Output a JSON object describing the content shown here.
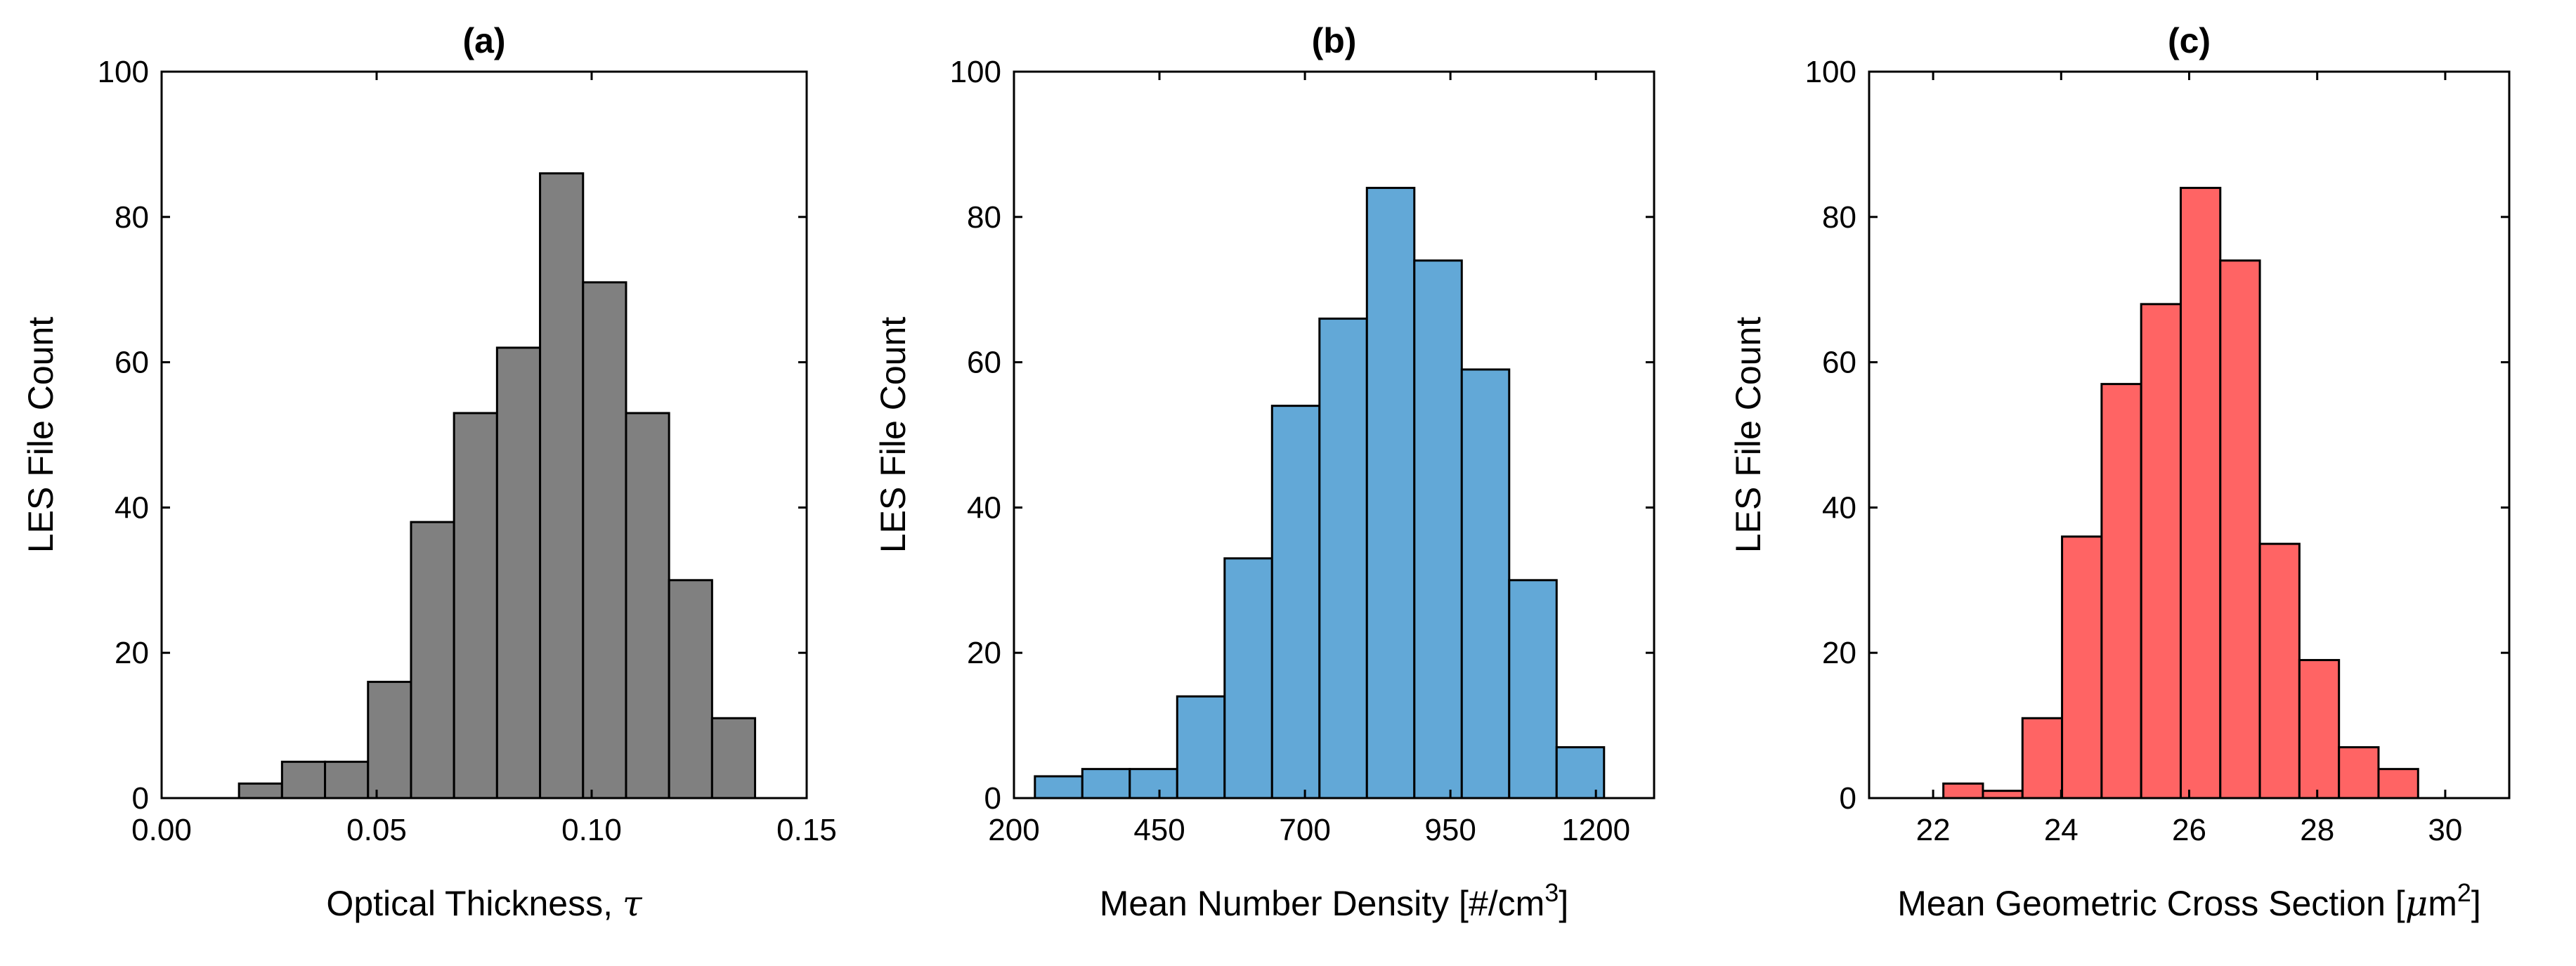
{
  "chart_data": [
    {
      "type": "bar",
      "title": "(a)",
      "xlabel": "Optical Thickness, ",
      "xlabel_symbol": "τ",
      "ylabel": "LES File Count",
      "xlim": [
        0,
        0.15
      ],
      "ylim": [
        0,
        100
      ],
      "xticks": [
        0,
        0.05,
        0.1,
        0.15
      ],
      "xtick_labels": [
        "0.00",
        "0.05",
        "0.10",
        "0.15"
      ],
      "yticks": [
        0,
        20,
        40,
        60,
        80,
        100
      ],
      "ytick_labels": [
        "0",
        "20",
        "40",
        "60",
        "80",
        "100"
      ],
      "bar_color": "#808080",
      "bin_width": 0.01,
      "bin_start": 0.018,
      "values": [
        2,
        5,
        5,
        16,
        38,
        53,
        62,
        86,
        71,
        53,
        30,
        11
      ]
    },
    {
      "type": "bar",
      "title": "(b)",
      "xlabel": "Mean Number Density [#/cm",
      "xlabel_sup": "3",
      "xlabel_end": "]",
      "ylabel": "LES File Count",
      "xlim": [
        200,
        1300
      ],
      "ylim": [
        0,
        100
      ],
      "xticks": [
        200,
        450,
        700,
        950,
        1200
      ],
      "xtick_labels": [
        "200",
        "450",
        "700",
        "950",
        "1200"
      ],
      "yticks": [
        0,
        20,
        40,
        60,
        80,
        100
      ],
      "ytick_labels": [
        "0",
        "20",
        "40",
        "60",
        "80",
        "100"
      ],
      "bar_color": "#62A8D7",
      "bin_width": 81.5,
      "bin_start": 236,
      "values": [
        3,
        4,
        4,
        14,
        33,
        54,
        66,
        84,
        74,
        59,
        30,
        7
      ]
    },
    {
      "type": "bar",
      "title": "(c)",
      "xlabel": "Mean Geometric Cross Section [",
      "xlabel_mu": "μ",
      "xlabel_unit": "m",
      "xlabel_sup": "2",
      "xlabel_end": "]",
      "ylabel": "LES File Count",
      "xlim": [
        21,
        31
      ],
      "ylim": [
        0,
        100
      ],
      "xticks": [
        22,
        24,
        26,
        28,
        30
      ],
      "xtick_labels": [
        "22",
        "24",
        "26",
        "28",
        "30"
      ],
      "yticks": [
        0,
        20,
        40,
        60,
        80,
        100
      ],
      "ytick_labels": [
        "0",
        "20",
        "40",
        "60",
        "80",
        "100"
      ],
      "bar_color": "#FF6464",
      "bin_width": 0.618,
      "bin_start": 22.16,
      "values": [
        2,
        1,
        11,
        36,
        57,
        68,
        84,
        74,
        35,
        19,
        7,
        4
      ]
    }
  ]
}
